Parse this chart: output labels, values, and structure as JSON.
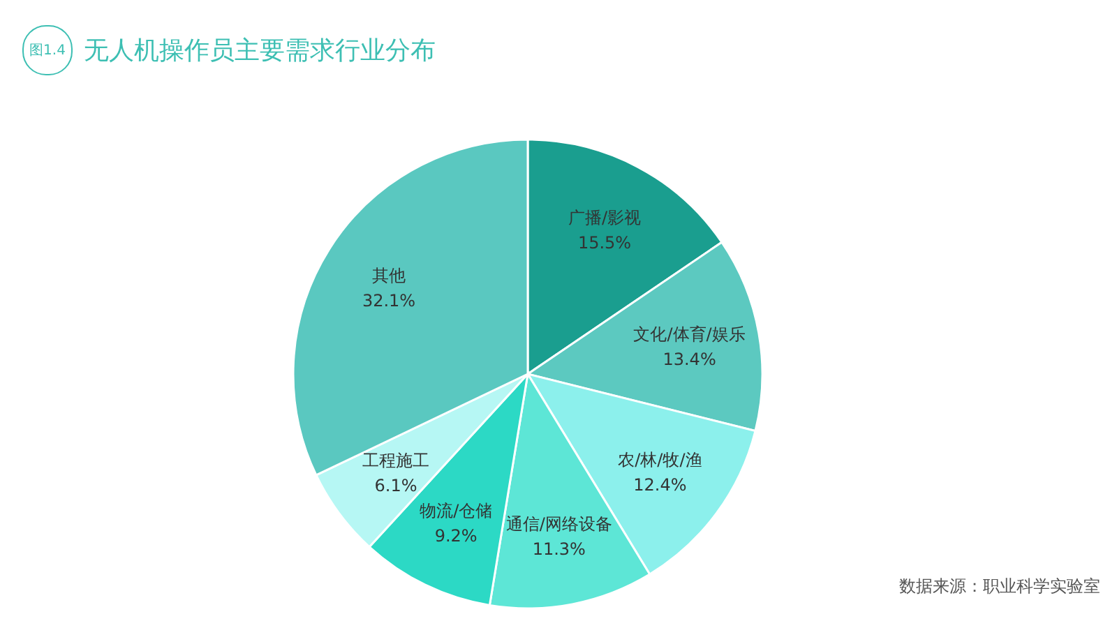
{
  "chart_data": {
    "type": "pie",
    "title": "无人机操作员主要需求行业分布",
    "annotations": [
      "图1.4",
      "数据来源：职业科学实验室"
    ],
    "categories": [
      "广播/影视",
      "文化/体育/娱乐",
      "农/林/牧/渔",
      "通信/网络设备",
      "物流/仓储",
      "工程施工",
      "其他"
    ],
    "values": [
      15.5,
      13.4,
      12.4,
      11.3,
      9.2,
      6.1,
      32.1
    ],
    "value_labels": [
      "15.5%",
      "13.4%",
      "12.4%",
      "11.3%",
      "9.2%",
      "6.1%",
      "32.1%"
    ],
    "colors": [
      "#1a9e8f",
      "#5cc9c0",
      "#8cf0ec",
      "#5de6d6",
      "#2cd9c5",
      "#b6f7f4",
      "#5ac8c0"
    ],
    "legend": false
  }
}
